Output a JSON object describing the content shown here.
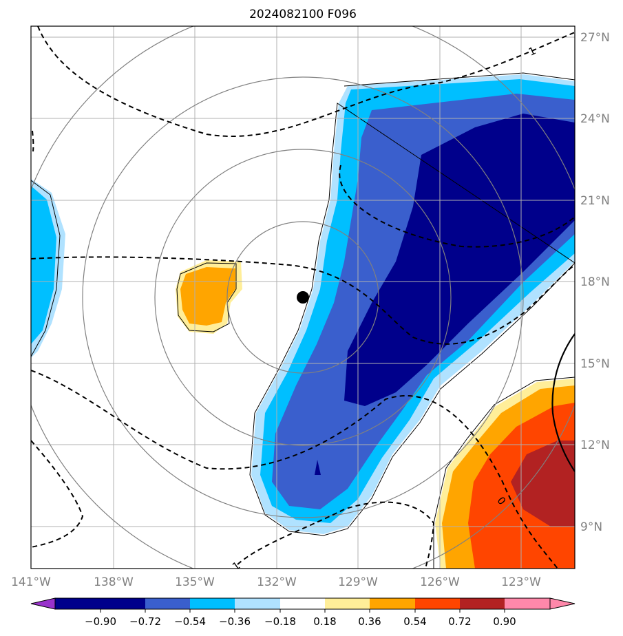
{
  "title": "2024082100 F096",
  "colors": {
    "c_le_m090": "#9933cc",
    "c_m090_m072": "#00008b",
    "c_m072_m054": "#3a5fcd",
    "c_m054_m036": "#00bfff",
    "c_m036_m018": "#b0e2ff",
    "c_m018_018": "#ffffff",
    "c_018_036": "#ffee99",
    "c_036_054": "#ffa500",
    "c_054_072": "#ff4500",
    "c_072_090": "#b22222",
    "c_ge_090": "#ff88aa",
    "grid": "#b0b0b0",
    "range_rings": "#808080",
    "contour": "#000000"
  },
  "lat_labels": [
    "27°N",
    "24°N",
    "21°N",
    "18°N",
    "15°N",
    "12°N",
    "9°N"
  ],
  "lon_labels": [
    "141°W",
    "138°W",
    "135°W",
    "132°W",
    "129°W",
    "126°W",
    "123°W"
  ],
  "colorbar": {
    "ticks": [
      "−0.90",
      "−0.72",
      "−0.54",
      "−0.36",
      "−0.18",
      "0.18",
      "0.36",
      "0.54",
      "0.72",
      "0.90"
    ]
  },
  "contour_labels": {
    "top": "1",
    "bottom": "1",
    "zero": "0"
  },
  "storm_center": {
    "lon": -131.0,
    "lat": 17.4
  }
}
